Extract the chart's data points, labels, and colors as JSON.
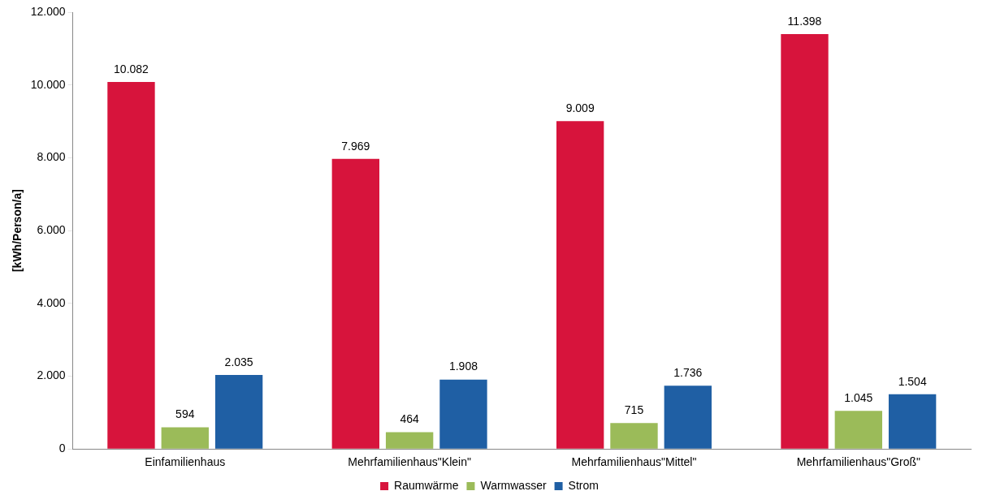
{
  "chart_data": {
    "type": "bar",
    "ylabel": "[kWh/Person/a]",
    "categories": [
      "Einfamilienhaus",
      "Mehrfamilienhaus\"Klein\"",
      "Mehrfamilienhaus\"Mittel\"",
      "Mehrfamilienhaus\"Groß\""
    ],
    "series": [
      {
        "name": "Raumwärme",
        "color": "#d7143c",
        "values": [
          10082,
          7969,
          9009,
          11398
        ],
        "value_labels": [
          "10.082",
          "7.969",
          "9.009",
          "11.398"
        ]
      },
      {
        "name": "Warmwasser",
        "color": "#9bbb59",
        "values": [
          594,
          464,
          715,
          1045
        ],
        "value_labels": [
          "594",
          "464",
          "715",
          "1.045"
        ]
      },
      {
        "name": "Strom",
        "color": "#1f5fa4",
        "values": [
          2035,
          1908,
          1736,
          1504
        ],
        "value_labels": [
          "2.035",
          "1.908",
          "1.736",
          "1.504"
        ]
      }
    ],
    "ylim": [
      0,
      12000
    ],
    "yticks": [
      0,
      {
        "value": 2000,
        "label": "2.000"
      },
      {
        "value": 4000,
        "label": "4.000"
      },
      {
        "value": 6000,
        "label": "6.000"
      },
      {
        "value": 8000,
        "label": "8.000"
      },
      {
        "value": 10000,
        "label": "10.000"
      },
      {
        "value": 12000,
        "label": "12.000"
      }
    ],
    "grid": false,
    "legend": "bottom"
  }
}
